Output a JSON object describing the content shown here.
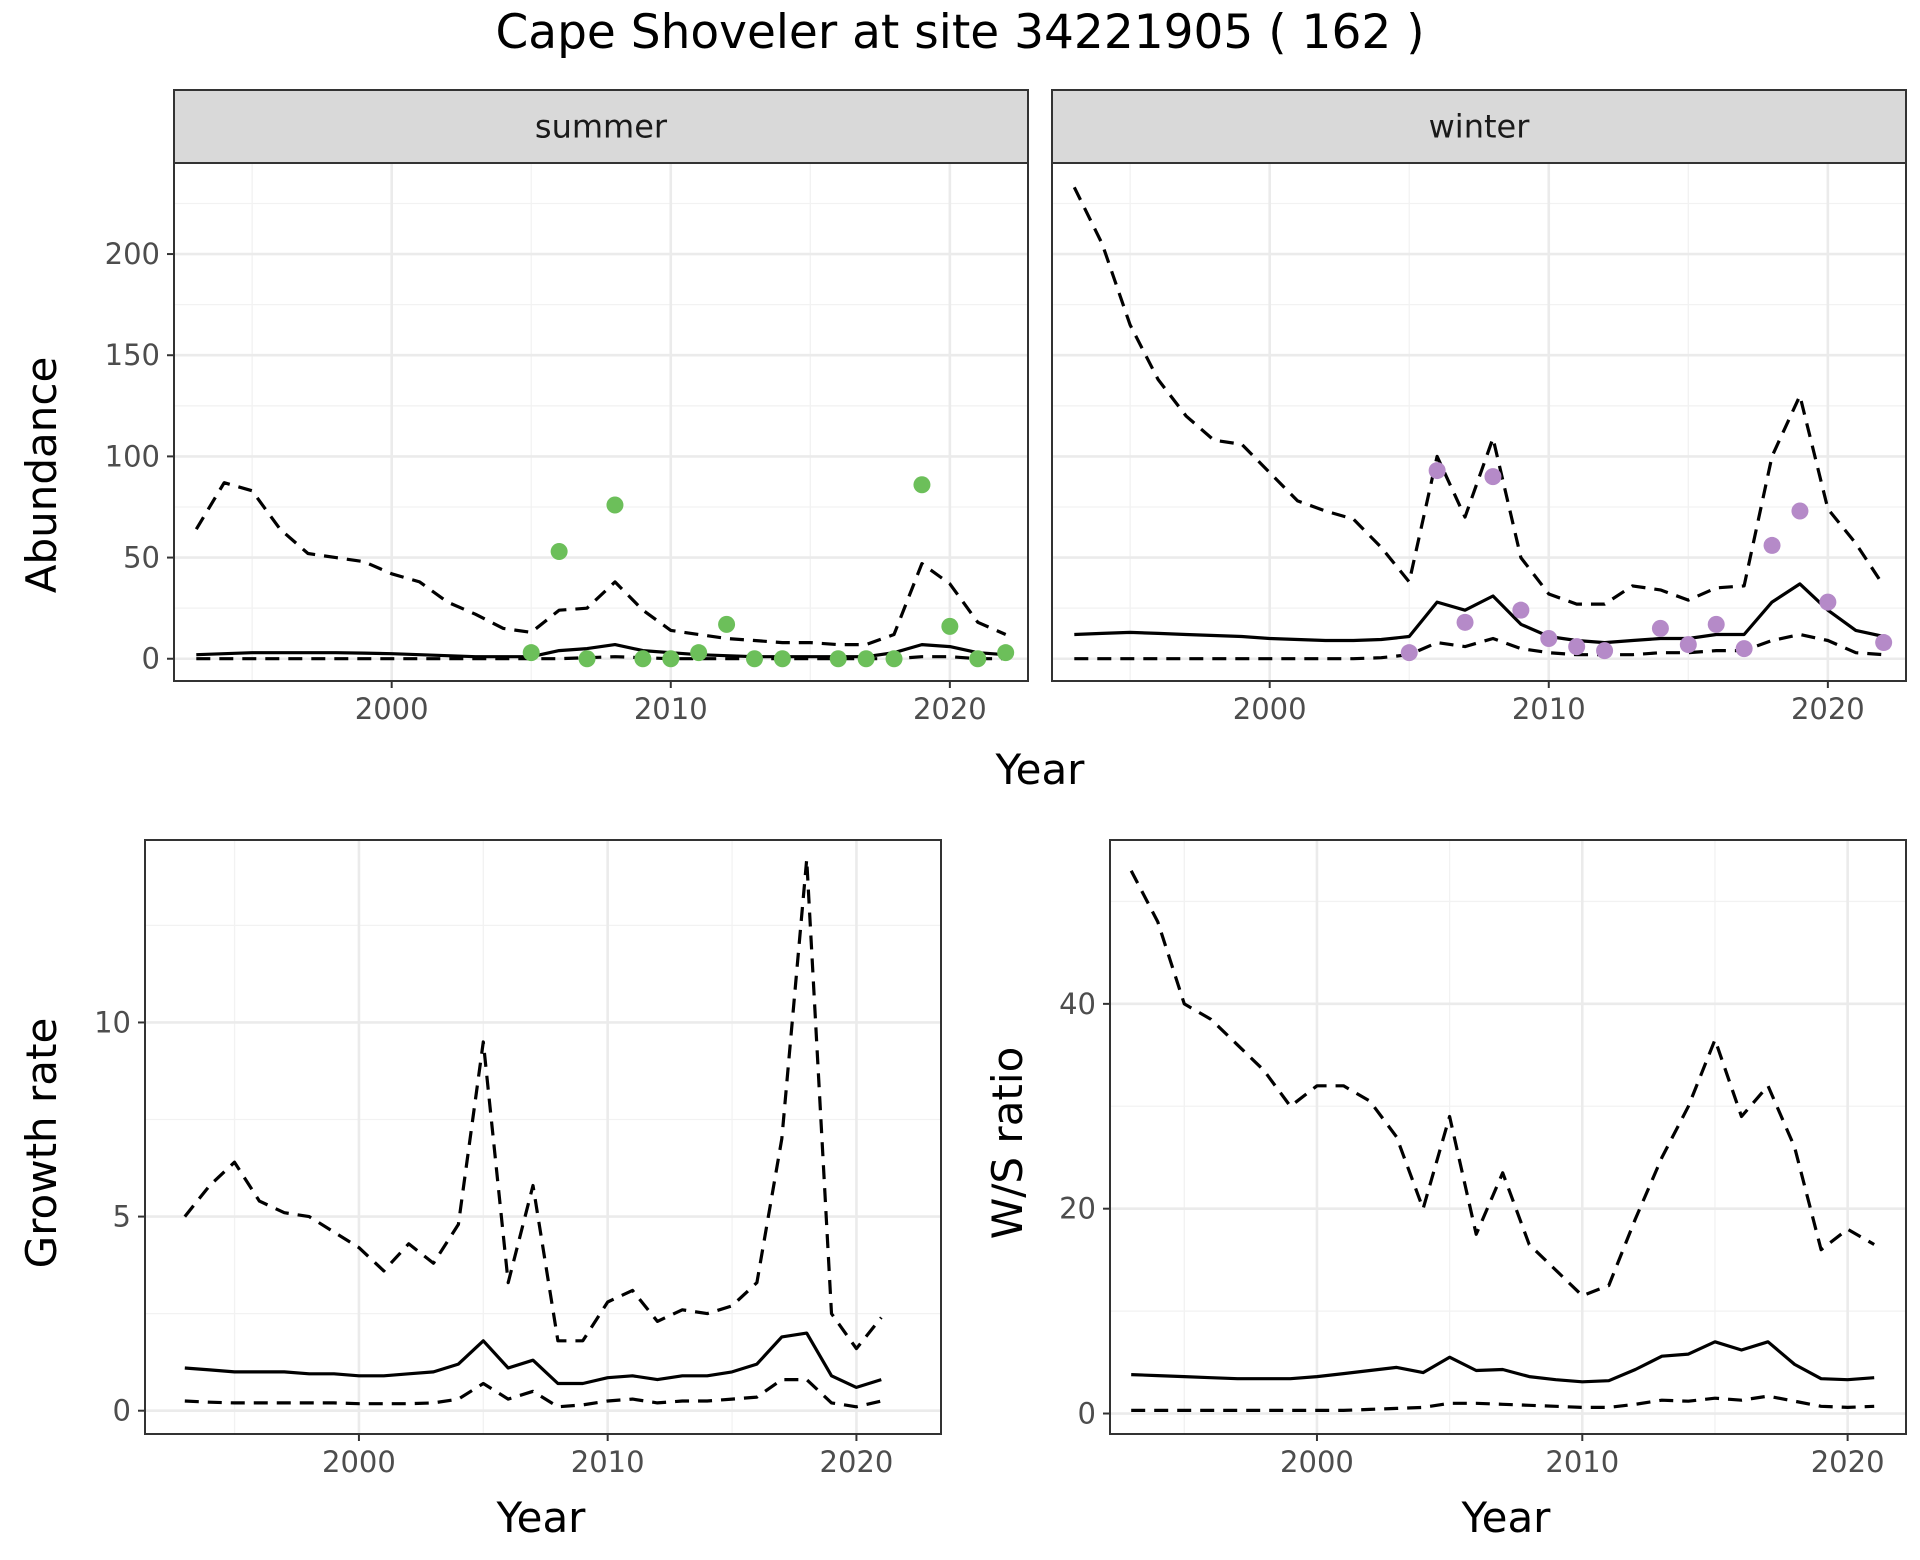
{
  "title": "Cape Shoveler at site 34221905 ( 162 )",
  "colors": {
    "summer_points": "#6cbf5a",
    "winter_points": "#b58ac8",
    "lines": "#000000",
    "strip": "#d9d9d9"
  },
  "chart_data": [
    {
      "id": "abundance-summer",
      "type": "line",
      "strip": "summer",
      "xlabel": "Year",
      "ylabel": "Abundance",
      "xlim": [
        1992.2,
        2022.8
      ],
      "ylim": [
        -11,
        245
      ],
      "x_ticks": [
        2000,
        2010,
        2020
      ],
      "y_ticks": [
        0,
        50,
        100,
        150,
        200
      ],
      "series": [
        {
          "name": "mean",
          "style": "solid",
          "x": [
            1993,
            1994,
            1995,
            1996,
            1997,
            1998,
            1999,
            2000,
            2001,
            2002,
            2003,
            2004,
            2005,
            2006,
            2007,
            2008,
            2009,
            2010,
            2011,
            2012,
            2013,
            2014,
            2015,
            2016,
            2017,
            2018,
            2019,
            2020,
            2021,
            2022
          ],
          "y": [
            2,
            2.5,
            3,
            3,
            3,
            3,
            2.8,
            2.5,
            2,
            1.5,
            1,
            1,
            1,
            4,
            5,
            7,
            4,
            3,
            2,
            1.5,
            1,
            1,
            1,
            1,
            1,
            3,
            7,
            6,
            3,
            2
          ]
        },
        {
          "name": "upper",
          "style": "dashed",
          "x": [
            1993,
            1994,
            1995,
            1996,
            1997,
            1998,
            1999,
            2000,
            2001,
            2002,
            2003,
            2004,
            2005,
            2006,
            2007,
            2008,
            2009,
            2010,
            2011,
            2012,
            2013,
            2014,
            2015,
            2016,
            2017,
            2018,
            2019,
            2020,
            2021,
            2022
          ],
          "y": [
            64,
            87,
            83,
            64,
            52,
            50,
            48,
            42,
            38,
            28,
            22,
            15,
            13,
            24,
            25,
            38,
            24,
            14,
            12,
            10,
            9,
            8,
            8,
            7,
            7,
            12,
            47,
            37,
            18,
            12
          ]
        },
        {
          "name": "lower",
          "style": "dashed",
          "x": [
            1993,
            1994,
            1995,
            1996,
            1997,
            1998,
            1999,
            2000,
            2001,
            2002,
            2003,
            2004,
            2005,
            2006,
            2007,
            2008,
            2009,
            2010,
            2011,
            2012,
            2013,
            2014,
            2015,
            2016,
            2017,
            2018,
            2019,
            2020,
            2021,
            2022
          ],
          "y": [
            0,
            0,
            0,
            0,
            0,
            0,
            0,
            0,
            0,
            0,
            0,
            0,
            0,
            0,
            0.5,
            1,
            0.5,
            0,
            0,
            0,
            0,
            0,
            0,
            0,
            0,
            0,
            1,
            1,
            0,
            0
          ]
        }
      ],
      "points": {
        "x": [
          2005,
          2006,
          2007,
          2008,
          2009,
          2010,
          2011,
          2012,
          2013,
          2014,
          2016,
          2017,
          2018,
          2019,
          2020,
          2021,
          2022
        ],
        "y": [
          3,
          53,
          0,
          76,
          0,
          0,
          3,
          17,
          0,
          0,
          0,
          0,
          0,
          86,
          16,
          0,
          3
        ]
      }
    },
    {
      "id": "abundance-winter",
      "type": "line",
      "strip": "winter",
      "xlabel": "Year",
      "ylabel": "",
      "xlim": [
        1992.2,
        2022.8
      ],
      "ylim": [
        -11,
        245
      ],
      "x_ticks": [
        2000,
        2010,
        2020
      ],
      "y_ticks": [
        0,
        50,
        100,
        150,
        200
      ],
      "series": [
        {
          "name": "mean",
          "style": "solid",
          "x": [
            1993,
            1994,
            1995,
            1996,
            1997,
            1998,
            1999,
            2000,
            2001,
            2002,
            2003,
            2004,
            2005,
            2006,
            2007,
            2008,
            2009,
            2010,
            2011,
            2012,
            2013,
            2014,
            2015,
            2016,
            2017,
            2018,
            2019,
            2020,
            2021,
            2022
          ],
          "y": [
            12,
            12.5,
            13,
            12.5,
            12,
            11.5,
            11,
            10,
            9.5,
            9,
            9,
            9.5,
            11,
            28,
            24,
            31,
            17,
            11,
            9,
            8,
            9,
            10,
            10,
            12,
            12,
            28,
            37,
            24,
            14,
            11
          ]
        },
        {
          "name": "upper",
          "style": "dashed",
          "x": [
            1993,
            1994,
            1995,
            1996,
            1997,
            1998,
            1999,
            2000,
            2001,
            2002,
            2003,
            2004,
            2005,
            2006,
            2007,
            2008,
            2009,
            2010,
            2011,
            2012,
            2013,
            2014,
            2015,
            2016,
            2017,
            2018,
            2019,
            2020,
            2021,
            2022
          ],
          "y": [
            233,
            205,
            165,
            138,
            120,
            108,
            106,
            92,
            78,
            73,
            69,
            55,
            38,
            100,
            70,
            109,
            50,
            32,
            27,
            27,
            36,
            34,
            29,
            35,
            36,
            100,
            130,
            74,
            57,
            36
          ]
        },
        {
          "name": "lower",
          "style": "dashed",
          "x": [
            1993,
            1994,
            1995,
            1996,
            1997,
            1998,
            1999,
            2000,
            2001,
            2002,
            2003,
            2004,
            2005,
            2006,
            2007,
            2008,
            2009,
            2010,
            2011,
            2012,
            2013,
            2014,
            2015,
            2016,
            2017,
            2018,
            2019,
            2020,
            2021,
            2022
          ],
          "y": [
            0,
            0,
            0,
            0,
            0,
            0,
            0,
            0,
            0,
            0,
            0,
            0.5,
            2,
            8,
            6,
            10,
            5,
            3,
            2,
            2,
            2,
            3,
            3,
            4,
            4,
            9,
            12,
            9,
            3,
            2
          ]
        }
      ],
      "points": {
        "x": [
          2005,
          2006,
          2007,
          2008,
          2009,
          2010,
          2011,
          2012,
          2014,
          2015,
          2016,
          2017,
          2018,
          2019,
          2020,
          2022
        ],
        "y": [
          3,
          93,
          18,
          90,
          24,
          10,
          6,
          4,
          15,
          7,
          17,
          5,
          56,
          73,
          28,
          8
        ]
      }
    },
    {
      "id": "growth-rate",
      "type": "line",
      "strip": "",
      "xlabel": "Year",
      "ylabel": "Growth rate",
      "xlim": [
        1991.4,
        2023.4
      ],
      "ylim": [
        -0.6,
        14.7
      ],
      "x_ticks": [
        2000,
        2010,
        2020
      ],
      "y_ticks": [
        0,
        5,
        10
      ],
      "series": [
        {
          "name": "mean",
          "style": "solid",
          "x": [
            1993,
            1994,
            1995,
            1996,
            1997,
            1998,
            1999,
            2000,
            2001,
            2002,
            2003,
            2004,
            2005,
            2006,
            2007,
            2008,
            2009,
            2010,
            2011,
            2012,
            2013,
            2014,
            2015,
            2016,
            2017,
            2018,
            2019,
            2020,
            2021
          ],
          "y": [
            1.1,
            1.05,
            1.0,
            1.0,
            1.0,
            0.95,
            0.95,
            0.9,
            0.9,
            0.95,
            1.0,
            1.2,
            1.8,
            1.1,
            1.3,
            0.7,
            0.7,
            0.85,
            0.9,
            0.8,
            0.9,
            0.9,
            1.0,
            1.2,
            1.9,
            2.0,
            0.9,
            0.6,
            0.8
          ]
        },
        {
          "name": "upper",
          "style": "dashed",
          "x": [
            1993,
            1994,
            1995,
            1996,
            1997,
            1998,
            1999,
            2000,
            2001,
            2002,
            2003,
            2004,
            2005,
            2006,
            2007,
            2008,
            2009,
            2010,
            2011,
            2012,
            2013,
            2014,
            2015,
            2016,
            2017,
            2018,
            2019,
            2020,
            2021
          ],
          "y": [
            5.0,
            5.8,
            6.4,
            5.4,
            5.1,
            5.0,
            4.6,
            4.2,
            3.6,
            4.3,
            3.8,
            4.8,
            9.5,
            3.3,
            5.8,
            1.8,
            1.8,
            2.8,
            3.1,
            2.3,
            2.6,
            2.5,
            2.7,
            3.3,
            7.0,
            14.2,
            2.5,
            1.6,
            2.4
          ]
        },
        {
          "name": "lower",
          "style": "dashed",
          "x": [
            1993,
            1994,
            1995,
            1996,
            1997,
            1998,
            1999,
            2000,
            2001,
            2002,
            2003,
            2004,
            2005,
            2006,
            2007,
            2008,
            2009,
            2010,
            2011,
            2012,
            2013,
            2014,
            2015,
            2016,
            2017,
            2018,
            2019,
            2020,
            2021
          ],
          "y": [
            0.25,
            0.22,
            0.2,
            0.2,
            0.2,
            0.2,
            0.2,
            0.18,
            0.18,
            0.18,
            0.2,
            0.3,
            0.7,
            0.3,
            0.5,
            0.1,
            0.15,
            0.25,
            0.3,
            0.2,
            0.25,
            0.25,
            0.3,
            0.35,
            0.8,
            0.8,
            0.2,
            0.1,
            0.25
          ]
        }
      ]
    },
    {
      "id": "ws-ratio",
      "type": "line",
      "strip": "",
      "xlabel": "Year",
      "ylabel": "W/S ratio",
      "xlim": [
        1992.2,
        2022.2
      ],
      "ylim": [
        -2,
        56
      ],
      "x_ticks": [
        2000,
        2010,
        2020
      ],
      "y_ticks": [
        0,
        20,
        40
      ],
      "series": [
        {
          "name": "mean",
          "style": "solid",
          "x": [
            1993,
            1994,
            1995,
            1996,
            1997,
            1998,
            1999,
            2000,
            2001,
            2002,
            2003,
            2004,
            2005,
            2006,
            2007,
            2008,
            2009,
            2010,
            2011,
            2012,
            2013,
            2014,
            2015,
            2016,
            2017,
            2018,
            2019,
            2020,
            2021
          ],
          "y": [
            3.8,
            3.7,
            3.6,
            3.5,
            3.4,
            3.4,
            3.4,
            3.6,
            3.9,
            4.2,
            4.5,
            4.0,
            5.5,
            4.2,
            4.3,
            3.6,
            3.3,
            3.1,
            3.2,
            4.3,
            5.6,
            5.8,
            7.0,
            6.2,
            7.0,
            4.8,
            3.4,
            3.3,
            3.5
          ]
        },
        {
          "name": "upper",
          "style": "dashed",
          "x": [
            1993,
            1994,
            1995,
            1996,
            1997,
            1998,
            1999,
            2000,
            2001,
            2002,
            2003,
            2004,
            2005,
            2006,
            2007,
            2008,
            2009,
            2010,
            2011,
            2012,
            2013,
            2014,
            2015,
            2016,
            2017,
            2018,
            2019,
            2020,
            2021
          ],
          "y": [
            53,
            48,
            40,
            38.5,
            36,
            33.5,
            30,
            32,
            32,
            30.5,
            27,
            20,
            29,
            17.5,
            23.5,
            16.5,
            14,
            11.5,
            12.5,
            19,
            25,
            30,
            36.5,
            29,
            32,
            26,
            16,
            18,
            16.5
          ]
        },
        {
          "name": "lower",
          "style": "dashed",
          "x": [
            1993,
            1994,
            1995,
            1996,
            1997,
            1998,
            1999,
            2000,
            2001,
            2002,
            2003,
            2004,
            2005,
            2006,
            2007,
            2008,
            2009,
            2010,
            2011,
            2012,
            2013,
            2014,
            2015,
            2016,
            2017,
            2018,
            2019,
            2020,
            2021
          ],
          "y": [
            0.3,
            0.3,
            0.3,
            0.3,
            0.3,
            0.3,
            0.3,
            0.3,
            0.3,
            0.4,
            0.5,
            0.6,
            1.0,
            1.0,
            0.9,
            0.8,
            0.7,
            0.6,
            0.6,
            0.9,
            1.3,
            1.2,
            1.5,
            1.3,
            1.7,
            1.2,
            0.7,
            0.6,
            0.7
          ]
        }
      ]
    }
  ]
}
